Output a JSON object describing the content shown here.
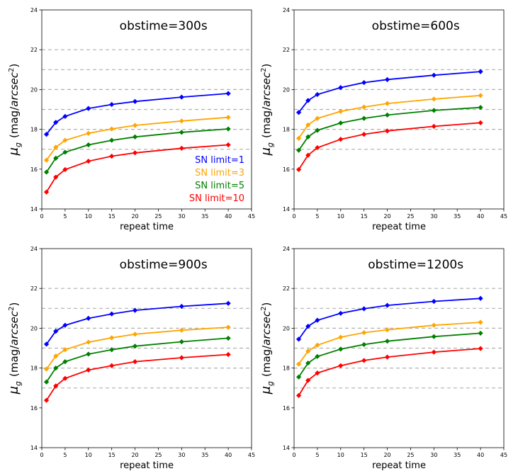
{
  "figure": {
    "xlabel": "repeat time",
    "ylabel_main": "μ",
    "ylabel_sub": "g",
    "ylabel_unit_pre": "(mag/",
    "ylabel_unit_italic": "arcsec",
    "ylabel_unit_sup": "2",
    "ylabel_unit_post": ")"
  },
  "legend": {
    "location": "lower-right of first panel",
    "entries": [
      {
        "label": "SN limit=1",
        "color": "#0000ff"
      },
      {
        "label": "SN limit=3",
        "color": "#ffa500"
      },
      {
        "label": "SN limit=5",
        "color": "#008000"
      },
      {
        "label": "SN limit=10",
        "color": "#ff0000"
      }
    ]
  },
  "chart_data": [
    {
      "type": "line",
      "title": "obstime=300s",
      "xlabel": "repeat time",
      "ylabel": "μg (mag/arcsec²)",
      "xlim": [
        0,
        45
      ],
      "ylim": [
        14,
        24
      ],
      "xticks": [
        0,
        5,
        10,
        15,
        20,
        25,
        30,
        35,
        40,
        45
      ],
      "yticks": [
        14,
        16,
        18,
        20,
        22,
        24
      ],
      "hlines": [
        17,
        18,
        19,
        20,
        21,
        22
      ],
      "x": [
        1,
        3,
        5,
        10,
        15,
        20,
        30,
        40
      ],
      "series": [
        {
          "name": "SN limit=1",
          "color": "#0000ff",
          "values": [
            17.75,
            18.35,
            18.65,
            19.05,
            19.25,
            19.4,
            19.62,
            19.8
          ]
        },
        {
          "name": "SN limit=3",
          "color": "#ffa500",
          "values": [
            16.45,
            17.1,
            17.45,
            17.8,
            18.02,
            18.2,
            18.42,
            18.6
          ]
        },
        {
          "name": "SN limit=5",
          "color": "#008000",
          "values": [
            15.85,
            16.55,
            16.85,
            17.22,
            17.45,
            17.62,
            17.85,
            18.02
          ]
        },
        {
          "name": "SN limit=10",
          "color": "#ff0000",
          "values": [
            14.85,
            15.6,
            15.98,
            16.4,
            16.65,
            16.82,
            17.05,
            17.22
          ]
        }
      ]
    },
    {
      "type": "line",
      "title": "obstime=600s",
      "xlabel": "repeat time",
      "ylabel": "μg (mag/arcsec²)",
      "xlim": [
        0,
        45
      ],
      "ylim": [
        14,
        24
      ],
      "xticks": [
        0,
        5,
        10,
        15,
        20,
        25,
        30,
        35,
        40,
        45
      ],
      "yticks": [
        14,
        16,
        18,
        20,
        22,
        24
      ],
      "hlines": [
        17,
        18,
        19,
        20,
        21,
        22
      ],
      "x": [
        1,
        3,
        5,
        10,
        15,
        20,
        30,
        40
      ],
      "series": [
        {
          "name": "SN limit=1",
          "color": "#0000ff",
          "values": [
            18.85,
            19.45,
            19.75,
            20.1,
            20.35,
            20.5,
            20.72,
            20.9
          ]
        },
        {
          "name": "SN limit=3",
          "color": "#ffa500",
          "values": [
            17.55,
            18.22,
            18.55,
            18.9,
            19.12,
            19.3,
            19.52,
            19.7
          ]
        },
        {
          "name": "SN limit=5",
          "color": "#008000",
          "values": [
            16.95,
            17.62,
            17.95,
            18.32,
            18.55,
            18.72,
            18.95,
            19.1
          ]
        },
        {
          "name": "SN limit=10",
          "color": "#ff0000",
          "values": [
            15.98,
            16.7,
            17.08,
            17.5,
            17.75,
            17.92,
            18.15,
            18.33
          ]
        }
      ]
    },
    {
      "type": "line",
      "title": "obstime=900s",
      "xlabel": "repeat time",
      "ylabel": "μg (mag/arcsec²)",
      "xlim": [
        0,
        45
      ],
      "ylim": [
        14,
        24
      ],
      "xticks": [
        0,
        5,
        10,
        15,
        20,
        25,
        30,
        35,
        40,
        45
      ],
      "yticks": [
        14,
        16,
        18,
        20,
        22,
        24
      ],
      "hlines": [
        17,
        18,
        19,
        20,
        21,
        22
      ],
      "x": [
        1,
        3,
        5,
        10,
        15,
        20,
        30,
        40
      ],
      "series": [
        {
          "name": "SN limit=1",
          "color": "#0000ff",
          "values": [
            19.2,
            19.85,
            20.15,
            20.5,
            20.72,
            20.9,
            21.1,
            21.25
          ]
        },
        {
          "name": "SN limit=3",
          "color": "#ffa500",
          "values": [
            17.95,
            18.6,
            18.92,
            19.3,
            19.52,
            19.7,
            19.9,
            20.05
          ]
        },
        {
          "name": "SN limit=5",
          "color": "#008000",
          "values": [
            17.3,
            18.0,
            18.32,
            18.7,
            18.92,
            19.1,
            19.32,
            19.5
          ]
        },
        {
          "name": "SN limit=10",
          "color": "#ff0000",
          "values": [
            16.38,
            17.1,
            17.48,
            17.9,
            18.12,
            18.32,
            18.52,
            18.68
          ]
        }
      ]
    },
    {
      "type": "line",
      "title": "obstime=1200s",
      "xlabel": "repeat time",
      "ylabel": "μg (mag/arcsec²)",
      "xlim": [
        0,
        45
      ],
      "ylim": [
        14,
        24
      ],
      "xticks": [
        0,
        5,
        10,
        15,
        20,
        25,
        30,
        35,
        40,
        45
      ],
      "yticks": [
        14,
        16,
        18,
        20,
        22,
        24
      ],
      "hlines": [
        17,
        18,
        19,
        20,
        21,
        22
      ],
      "x": [
        1,
        3,
        5,
        10,
        15,
        20,
        30,
        40
      ],
      "series": [
        {
          "name": "SN limit=1",
          "color": "#0000ff",
          "values": [
            19.45,
            20.1,
            20.4,
            20.75,
            20.98,
            21.15,
            21.35,
            21.5
          ]
        },
        {
          "name": "SN limit=3",
          "color": "#ffa500",
          "values": [
            18.2,
            18.85,
            19.15,
            19.55,
            19.78,
            19.92,
            20.15,
            20.3
          ]
        },
        {
          "name": "SN limit=5",
          "color": "#008000",
          "values": [
            17.55,
            18.25,
            18.58,
            18.95,
            19.18,
            19.35,
            19.58,
            19.75
          ]
        },
        {
          "name": "SN limit=10",
          "color": "#ff0000",
          "values": [
            16.62,
            17.38,
            17.75,
            18.12,
            18.38,
            18.55,
            18.8,
            18.98
          ]
        }
      ]
    }
  ]
}
